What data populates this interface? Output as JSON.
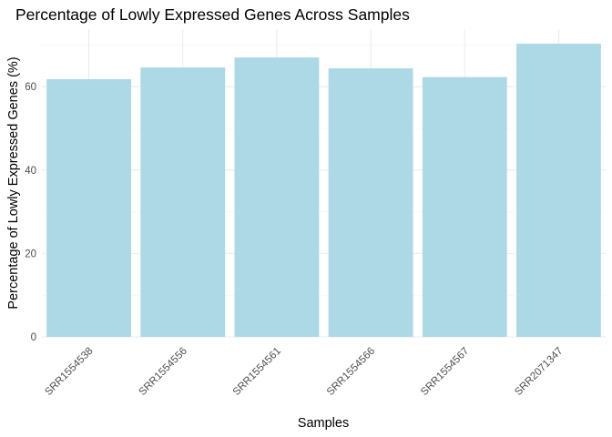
{
  "chart_data": {
    "type": "bar",
    "title": "Percentage of Lowly Expressed Genes Across Samples",
    "xlabel": "Samples",
    "ylabel": "Percentage of Lowly Expressed Genes (%)",
    "categories": [
      "SRR1554538",
      "SRR1554556",
      "SRR1554561",
      "SRR1554566",
      "SRR1554567",
      "SRR2071347"
    ],
    "values": [
      61.8,
      64.6,
      67.0,
      64.4,
      62.3,
      70.3
    ],
    "ylim": [
      0,
      73.8
    ],
    "y_ticks": [
      0,
      20,
      40,
      60
    ],
    "y_tick_labels": [
      "0",
      "20",
      "40",
      "60"
    ],
    "bar_color": "#ADD8E6",
    "grid": true,
    "legend": "none"
  }
}
